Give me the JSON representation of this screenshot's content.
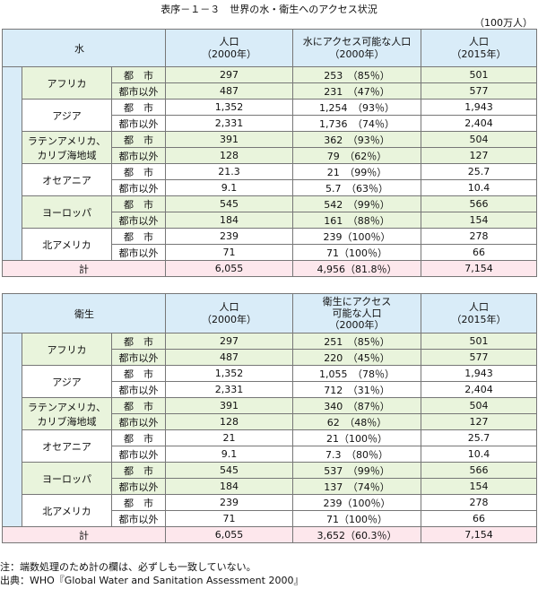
{
  "title": "表序－１－３　世界の水・衛生へのアクセス状況",
  "unit": "（100万人）",
  "tables": [
    {
      "label": "水",
      "col1": "人口",
      "col1_sub": "（2000年）",
      "col2": "水にアクセス可能な人口",
      "col2_line2": "",
      "col2_sub": "（2000年）",
      "col3": "人口",
      "col3_sub": "（2015年）",
      "regions": [
        {
          "name": "アフリカ",
          "name2": "",
          "rows": [
            {
              "type": "都　市",
              "pop2000": "297",
              "access": "253　（85％）",
              "pop2015": "501"
            },
            {
              "type": "都市以外",
              "pop2000": "487",
              "access": "231　（47％）",
              "pop2015": "577"
            }
          ]
        },
        {
          "name": "アジア",
          "name2": "",
          "rows": [
            {
              "type": "都　市",
              "pop2000": "1,352",
              "access": "1,254　（93％）",
              "pop2015": "1,943"
            },
            {
              "type": "都市以外",
              "pop2000": "2,331",
              "access": "1,736　（74％）",
              "pop2015": "2,404"
            }
          ]
        },
        {
          "name": "ラテンアメリカ、",
          "name2": "カリブ海地域",
          "rows": [
            {
              "type": "都　市",
              "pop2000": "391",
              "access": "362　（93％）",
              "pop2015": "504"
            },
            {
              "type": "都市以外",
              "pop2000": "128",
              "access": "79　（62％）",
              "pop2015": "127"
            }
          ]
        },
        {
          "name": "オセアニア",
          "name2": "",
          "rows": [
            {
              "type": "都　市",
              "pop2000": "21.3",
              "access": "21　（99％）",
              "pop2015": "25.7"
            },
            {
              "type": "都市以外",
              "pop2000": "9.1",
              "access": "5.7　（63％）",
              "pop2015": "10.4"
            }
          ]
        },
        {
          "name": "ヨーロッパ",
          "name2": "",
          "rows": [
            {
              "type": "都　市",
              "pop2000": "545",
              "access": "542　（99％）",
              "pop2015": "566"
            },
            {
              "type": "都市以外",
              "pop2000": "184",
              "access": "161　（88％）",
              "pop2015": "154"
            }
          ]
        },
        {
          "name": "北アメリカ",
          "name2": "",
          "rows": [
            {
              "type": "都　市",
              "pop2000": "239",
              "access": "239（100％）",
              "pop2015": "278"
            },
            {
              "type": "都市以外",
              "pop2000": "71",
              "access": "71（100％）",
              "pop2015": "66"
            }
          ]
        }
      ],
      "total": {
        "label": "計",
        "pop2000": "6,055",
        "access": "4,956（81.8％）",
        "pop2015": "7,154"
      }
    },
    {
      "label": "衛生",
      "col1": "人口",
      "col1_sub": "（2000年）",
      "col2": "衛生にアクセス",
      "col2_line2": "可能な人口",
      "col2_sub": "（2000年）",
      "col3": "人口",
      "col3_sub": "（2015年）",
      "regions": [
        {
          "name": "アフリカ",
          "name2": "",
          "rows": [
            {
              "type": "都　市",
              "pop2000": "297",
              "access": "251　（85％）",
              "pop2015": "501"
            },
            {
              "type": "都市以外",
              "pop2000": "487",
              "access": "220　（45％）",
              "pop2015": "577"
            }
          ]
        },
        {
          "name": "アジア",
          "name2": "",
          "rows": [
            {
              "type": "都　市",
              "pop2000": "1,352",
              "access": "1,055　（78％）",
              "pop2015": "1,943"
            },
            {
              "type": "都市以外",
              "pop2000": "2,331",
              "access": "712　（31％）",
              "pop2015": "2,404"
            }
          ]
        },
        {
          "name": "ラテンアメリカ、",
          "name2": "カリブ海地域",
          "rows": [
            {
              "type": "都　市",
              "pop2000": "391",
              "access": "340　（87％）",
              "pop2015": "504"
            },
            {
              "type": "都市以外",
              "pop2000": "128",
              "access": "62　（48％）",
              "pop2015": "127"
            }
          ]
        },
        {
          "name": "オセアニア",
          "name2": "",
          "rows": [
            {
              "type": "都　市",
              "pop2000": "21",
              "access": "21（100％）",
              "pop2015": "25.7"
            },
            {
              "type": "都市以外",
              "pop2000": "9.1",
              "access": "7.3　（80％）",
              "pop2015": "10.4"
            }
          ]
        },
        {
          "name": "ヨーロッパ",
          "name2": "",
          "rows": [
            {
              "type": "都　市",
              "pop2000": "545",
              "access": "537　（99％）",
              "pop2015": "566"
            },
            {
              "type": "都市以外",
              "pop2000": "184",
              "access": "137　（74％）",
              "pop2015": "154"
            }
          ]
        },
        {
          "name": "北アメリカ",
          "name2": "",
          "rows": [
            {
              "type": "都　市",
              "pop2000": "239",
              "access": "239（100％）",
              "pop2015": "278"
            },
            {
              "type": "都市以外",
              "pop2000": "71",
              "access": "71（100％）",
              "pop2015": "66"
            }
          ]
        }
      ],
      "total": {
        "label": "計",
        "pop2000": "6,055",
        "access": "3,652（60.3％）",
        "pop2015": "7,154"
      }
    }
  ],
  "notes": {
    "note": "注：端数処理のため計の欄は、必ずしも一致していない。",
    "source": "出典：WHO『Global Water and Sanitation Assessment 2000』"
  }
}
